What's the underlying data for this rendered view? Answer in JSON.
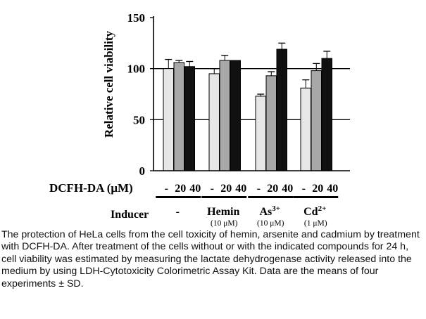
{
  "chart_data": {
    "type": "bar",
    "ylabel": "Relative cell viability",
    "ylim": [
      0,
      150
    ],
    "yticks": [
      0,
      50,
      100,
      150
    ],
    "gridlines_at": [
      50,
      100
    ],
    "xaxis_label_main": "DCFH-DA (",
    "xaxis_label_unit": "μM)",
    "dose_labels": [
      "-",
      "20",
      "40"
    ],
    "inducer_label": "Inducer",
    "series": [
      {
        "name": "-",
        "color": "#e6e6e6"
      },
      {
        "name": "20",
        "color": "#a8a8a8"
      },
      {
        "name": "40",
        "color": "#111111"
      }
    ],
    "groups": [
      {
        "name": "-",
        "sub": "",
        "values": [
          100,
          106,
          102
        ],
        "errors": [
          9,
          2,
          5
        ]
      },
      {
        "name": "Hemin",
        "sub": "(10 μM)",
        "values": [
          95,
          108,
          108
        ],
        "errors": [
          5,
          5,
          0
        ]
      },
      {
        "name": "As",
        "sup": "3+",
        "sub": "(10 μM)",
        "values": [
          73,
          93,
          119
        ],
        "errors": [
          2,
          4,
          6
        ]
      },
      {
        "name": "Cd",
        "sup": "2+",
        "sub": "(1 μM)",
        "values": [
          81,
          98,
          110
        ],
        "errors": [
          8,
          7,
          7
        ]
      }
    ]
  },
  "caption": "The protection of HeLa cells from the cell toxicity of hemin, arsenite and cadmium by treatment with DCFH-DA. After treatment of the cells without or with the indicated compounds for 24 h, cell viability was estimated by measuring the lactate dehydrogenase activity released into the medium by using LDH-Cytotoxicity Colorimetric Assay Kit. Data are the means of four experiments ± SD."
}
